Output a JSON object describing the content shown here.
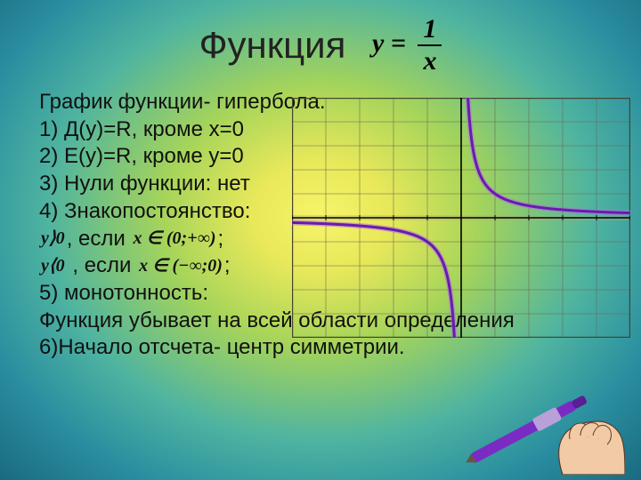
{
  "title": {
    "word": "Функция",
    "formula_lhs": "y",
    "formula_eq": " = ",
    "formula_num": "1",
    "formula_den": "x"
  },
  "lines": {
    "l0": "График функции- гипербола.",
    "l1": "1) Д(у)=R, кроме х=0",
    "l2": "2) E(y)=R, кроме у=0",
    "l3": "3) Нули функции: нет",
    "l4": "4) Знакопостоянство:",
    "l5_math": "y⟩0",
    "l5_mid": ", если ",
    "l5_math2": "x ∈ (0;+∞)",
    "l5_semi": ";",
    "l6_math": "y⟨0",
    "l6_mid": " , если  ",
    "l6_math2": "x ∈ (−∞;0)",
    "l6_semi": ";",
    "l7": "5) монотонность:",
    "l8": "Функция убывает на всей области определения",
    "l9": "6)Начало отсчета- центр симметрии."
  },
  "chart": {
    "type": "line",
    "xlim": [
      -5,
      5
    ],
    "ylim": [
      -5,
      5
    ],
    "grid_step": 1,
    "grid_color": "#6a6850",
    "frame_color": "#46442f",
    "axis_color": "#000000",
    "curve_color": "#6a1ab0",
    "curve_fill": "#b070e0",
    "curve_width": 3,
    "k": 1,
    "background": "transparent"
  },
  "colors": {
    "text": "#111111",
    "title": "#222222",
    "pen_body": "#7a2bc4",
    "pen_grip": "#b9a0d8",
    "hand_skin": "#f2cba6",
    "hand_outline": "#5a3c28"
  }
}
